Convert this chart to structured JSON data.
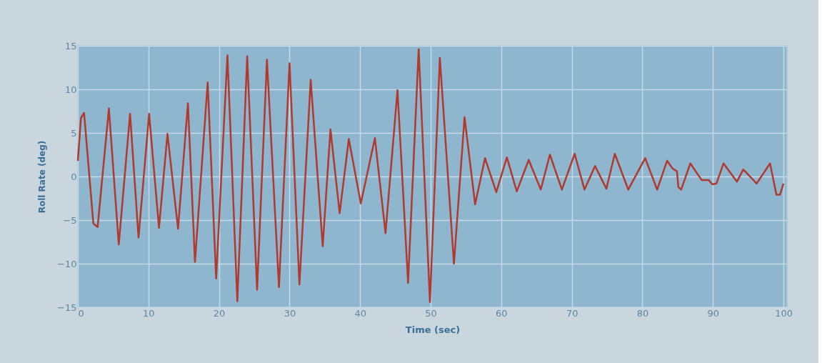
{
  "chart_data": {
    "type": "line",
    "xlabel": "Time (sec)",
    "ylabel": "Roll Rate (deg)",
    "x": [
      0,
      0.44,
      0.88,
      2.2,
      2.8,
      4.4,
      5.8,
      7.4,
      8.6,
      10.1,
      11.5,
      12.7,
      14.2,
      15.6,
      16.6,
      18.4,
      19.6,
      21.2,
      22.6,
      24.0,
      25.4,
      26.8,
      28.5,
      30.0,
      31.4,
      33.0,
      34.7,
      35.8,
      37.1,
      38.4,
      40.1,
      42.1,
      43.6,
      45.3,
      46.8,
      48.3,
      49.9,
      51.3,
      53.3,
      54.8,
      56.3,
      57.7,
      59.3,
      60.8,
      62.2,
      63.9,
      65.6,
      66.9,
      68.6,
      70.4,
      71.8,
      73.3,
      74.9,
      76.1,
      78.0,
      80.4,
      82.1,
      83.5,
      84.3,
      84.9,
      85.1,
      85.5,
      86.8,
      88.4,
      89.4,
      89.9,
      90.5,
      91.5,
      93.4,
      94.3,
      96.2,
      98.1,
      99.0,
      99.5,
      100.0
    ],
    "series": [
      {
        "color": "#b03a2e",
        "values": [
          1.8,
          6.7,
          7.3,
          -5.4,
          -5.8,
          7.8,
          -7.8,
          7.2,
          -7.0,
          7.2,
          -5.9,
          4.9,
          -6.0,
          8.4,
          -9.8,
          10.8,
          -11.7,
          13.9,
          -14.3,
          13.8,
          -13.0,
          13.4,
          -12.7,
          13.0,
          -12.4,
          11.1,
          -8.0,
          5.4,
          -4.2,
          4.3,
          -3.1,
          4.4,
          -6.5,
          9.9,
          -12.2,
          14.6,
          -14.4,
          13.6,
          -10.0,
          6.8,
          -3.2,
          2.1,
          -1.8,
          2.2,
          -1.7,
          1.9,
          -1.5,
          2.5,
          -1.5,
          2.6,
          -1.5,
          1.2,
          -1.4,
          2.6,
          -1.5,
          2.1,
          -1.5,
          1.8,
          0.9,
          0.6,
          -1.2,
          -1.5,
          1.5,
          -0.4,
          -0.4,
          -0.9,
          -0.8,
          1.5,
          -0.6,
          0.8,
          -0.8,
          1.5,
          -2.1,
          -2.1,
          -0.8
        ]
      }
    ],
    "xlim": [
      0,
      100.5
    ],
    "ylim": [
      -15,
      15
    ],
    "xticks": [
      0,
      10,
      20,
      30,
      40,
      50,
      60,
      70,
      80,
      90,
      100
    ],
    "yticks": [
      -15,
      -10,
      -5,
      0,
      5,
      10,
      15
    ],
    "grid": true,
    "marker": "none",
    "line_style": "solid"
  }
}
